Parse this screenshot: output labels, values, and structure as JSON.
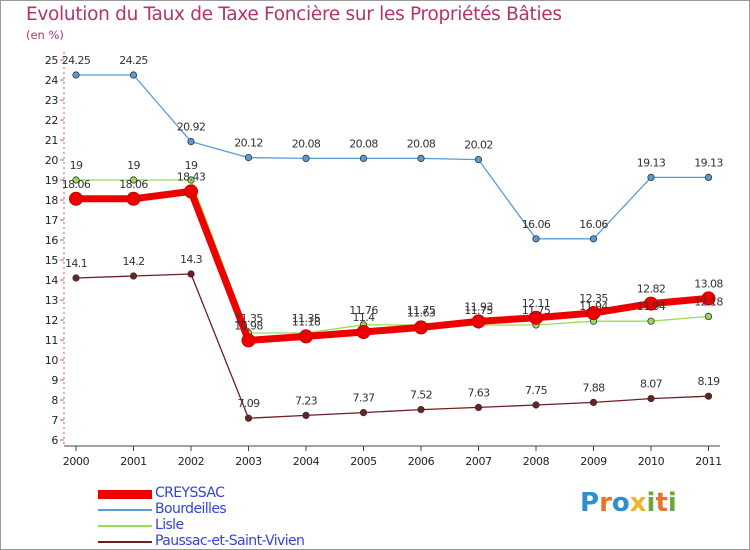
{
  "chart_data": {
    "type": "line",
    "title": "Evolution du Taux de Taxe Foncière sur les Propriétés Bâties",
    "ylabel": "(en %)",
    "xlabel": "",
    "ylim": [
      6,
      25
    ],
    "x": [
      "2000",
      "2001",
      "2002",
      "2003",
      "2004",
      "2005",
      "2006",
      "2007",
      "2008",
      "2009",
      "2010",
      "2011"
    ],
    "yticks": [
      "6",
      "7",
      "8",
      "9",
      "10",
      "11",
      "12",
      "13",
      "14",
      "15",
      "16",
      "17",
      "18",
      "19",
      "20",
      "21",
      "22",
      "23",
      "24",
      "25"
    ],
    "series": [
      {
        "name": "Paussac-et-Saint-Vivien",
        "color": "#6e1f24",
        "values": [
          14.1,
          14.2,
          14.3,
          7.09,
          7.23,
          7.37,
          7.52,
          7.63,
          7.75,
          7.88,
          8.07,
          8.19
        ],
        "labels": [
          "14.1",
          "14.2",
          "14.3",
          "7.09",
          "7.23",
          "7.37",
          "7.52",
          "7.63",
          "7.75",
          "7.88",
          "8.07",
          "8.19"
        ]
      },
      {
        "name": "Lisle",
        "color": "#99dd55",
        "values": [
          19,
          19,
          19,
          11.35,
          11.35,
          11.76,
          11.75,
          11.75,
          11.75,
          11.94,
          11.94,
          12.18
        ],
        "labels": [
          "19",
          "19",
          "19",
          "11.35",
          "11.35",
          "11.76",
          "11.75",
          "11.75",
          "11.75",
          "11.94",
          "11.94",
          "12.18"
        ]
      },
      {
        "name": "Bourdeilles",
        "color": "#5b9bd5",
        "values": [
          24.25,
          24.25,
          20.92,
          20.12,
          20.08,
          20.08,
          20.08,
          20.02,
          16.06,
          16.06,
          19.13,
          19.13
        ],
        "labels": [
          "24.25",
          "24.25",
          "20.92",
          "20.12",
          "20.08",
          "20.08",
          "20.08",
          "20.02",
          "16.06",
          "16.06",
          "19.13",
          "19.13"
        ]
      },
      {
        "name": "CREYSSAC",
        "color": "#ee0000",
        "values": [
          18.06,
          18.06,
          18.43,
          10.98,
          11.18,
          11.4,
          11.63,
          11.93,
          12.11,
          12.35,
          12.82,
          13.08
        ],
        "labels": [
          "18.06",
          "18.06",
          "18.43",
          "10.98",
          "11.18",
          "11.4",
          "11.63",
          "11.93",
          "12.11",
          "12.35",
          "12.82",
          "13.08"
        ]
      }
    ]
  },
  "legend": {
    "items": [
      {
        "label": "CREYSSAC"
      },
      {
        "label": "Bourdeilles"
      },
      {
        "label": "Lisle"
      },
      {
        "label": "Paussac-et-Saint-Vivien"
      }
    ]
  },
  "logo": {
    "text": "Proxiti"
  }
}
